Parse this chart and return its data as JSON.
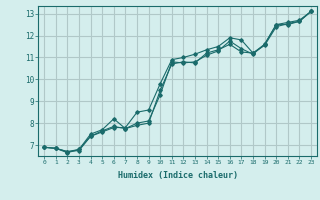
{
  "xlabel": "Humidex (Indice chaleur)",
  "bg_color": "#d4eeed",
  "grid_color": "#b0c8c8",
  "line_color": "#1a6b6b",
  "xlim": [
    -0.5,
    23.5
  ],
  "ylim": [
    6.5,
    13.35
  ],
  "yticks": [
    7,
    8,
    9,
    10,
    11,
    12,
    13
  ],
  "xticks": [
    0,
    1,
    2,
    3,
    4,
    5,
    6,
    7,
    8,
    9,
    10,
    11,
    12,
    13,
    14,
    15,
    16,
    17,
    18,
    19,
    20,
    21,
    22,
    23
  ],
  "line1_x": [
    0,
    1,
    2,
    3,
    4,
    5,
    6,
    7,
    8,
    9,
    10,
    11,
    12,
    13,
    14,
    15,
    16,
    17,
    18,
    19,
    20,
    21,
    22,
    23
  ],
  "line1_y": [
    6.9,
    6.85,
    6.7,
    6.75,
    7.4,
    7.65,
    7.85,
    7.75,
    7.9,
    8.0,
    9.5,
    10.7,
    10.8,
    10.75,
    11.2,
    11.35,
    11.6,
    11.25,
    11.2,
    11.55,
    12.4,
    12.55,
    12.65,
    13.1
  ],
  "line2_x": [
    0,
    1,
    2,
    3,
    4,
    5,
    6,
    7,
    8,
    9,
    10,
    11,
    12,
    13,
    14,
    15,
    16,
    17,
    18,
    19,
    20,
    21,
    22,
    23
  ],
  "line2_y": [
    6.9,
    6.85,
    6.7,
    6.8,
    7.5,
    7.7,
    8.2,
    7.75,
    8.0,
    8.1,
    9.3,
    10.8,
    10.75,
    10.8,
    11.1,
    11.3,
    11.75,
    11.4,
    11.15,
    11.6,
    12.5,
    12.6,
    12.7,
    13.1
  ],
  "line3_x": [
    0,
    1,
    2,
    3,
    4,
    5,
    6,
    7,
    8,
    9,
    10,
    11,
    12,
    13,
    14,
    15,
    16,
    17,
    18,
    19,
    20,
    21,
    22,
    23
  ],
  "line3_y": [
    6.9,
    6.85,
    6.65,
    6.8,
    7.4,
    7.6,
    7.8,
    7.8,
    8.5,
    8.6,
    9.8,
    10.9,
    11.0,
    11.15,
    11.35,
    11.5,
    11.9,
    11.8,
    11.2,
    11.6,
    12.5,
    12.5,
    12.65,
    13.1
  ]
}
